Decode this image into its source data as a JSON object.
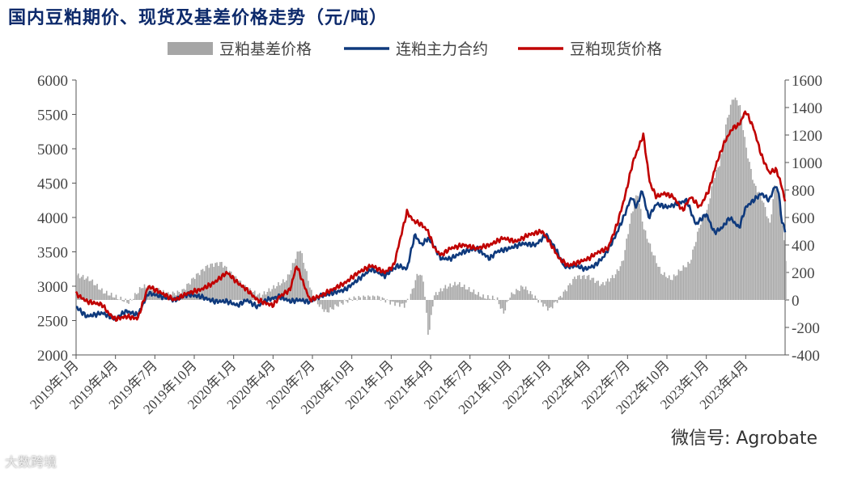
{
  "chart_data": {
    "type": "line",
    "title": "国内豆粕期价、现货及基差价格走势（元/吨）",
    "legend": [
      {
        "name": "豆粕基差价格",
        "kind": "bar",
        "color": "#a6a6a6"
      },
      {
        "name": "连粕主力合约",
        "kind": "line",
        "color": "#0f3a7d"
      },
      {
        "name": "豆粕现货价格",
        "kind": "line",
        "color": "#c00000"
      }
    ],
    "legend_position": "top-center",
    "x_labels": [
      "2019年1月",
      "2019年4月",
      "2019年7月",
      "2019年10月",
      "2020年1月",
      "2020年4月",
      "2020年7月",
      "2020年10月",
      "2021年1月",
      "2021年4月",
      "2021年7月",
      "2021年10月",
      "2022年1月",
      "2022年4月",
      "2022年7月",
      "2022年10月",
      "2023年1月",
      "2023年4月"
    ],
    "x_range_months": [
      0,
      54
    ],
    "y_left": {
      "min": 2000,
      "max": 6000,
      "step": 500,
      "ticks": [
        "2000",
        "2500",
        "3000",
        "3500",
        "4000",
        "4500",
        "5000",
        "5500",
        "6000"
      ]
    },
    "y_right": {
      "min": -400,
      "max": 1600,
      "step": 200,
      "ticks": [
        "-400",
        "-200",
        "0",
        "200",
        "400",
        "600",
        "800",
        "1000",
        "1200",
        "1400",
        "1600"
      ]
    },
    "series": [
      {
        "name": "连粕主力合约",
        "axis": "left",
        "color": "#0f3a7d",
        "points": [
          [
            0,
            2700
          ],
          [
            0.8,
            2560
          ],
          [
            2,
            2610
          ],
          [
            3,
            2520
          ],
          [
            3.8,
            2640
          ],
          [
            4.7,
            2580
          ],
          [
            5.5,
            2900
          ],
          [
            6.5,
            2850
          ],
          [
            7.5,
            2800
          ],
          [
            8.5,
            2880
          ],
          [
            9.5,
            2850
          ],
          [
            10.5,
            2780
          ],
          [
            11.5,
            2780
          ],
          [
            12.3,
            2720
          ],
          [
            13,
            2800
          ],
          [
            13.8,
            2700
          ],
          [
            14.5,
            2800
          ],
          [
            15.5,
            2850
          ],
          [
            16.3,
            2780
          ],
          [
            17,
            2800
          ],
          [
            17.8,
            2770
          ],
          [
            18.5,
            2850
          ],
          [
            19.5,
            2900
          ],
          [
            20.5,
            2950
          ],
          [
            21.5,
            3100
          ],
          [
            22.5,
            3250
          ],
          [
            23.5,
            3150
          ],
          [
            24.5,
            3300
          ],
          [
            25.2,
            3250
          ],
          [
            25.8,
            3750
          ],
          [
            26.3,
            3600
          ],
          [
            26.8,
            3700
          ],
          [
            27.2,
            3600
          ],
          [
            27.8,
            3400
          ],
          [
            28.5,
            3400
          ],
          [
            29.5,
            3500
          ],
          [
            30.5,
            3550
          ],
          [
            31.5,
            3400
          ],
          [
            32,
            3500
          ],
          [
            33,
            3550
          ],
          [
            34,
            3620
          ],
          [
            35,
            3600
          ],
          [
            35.8,
            3750
          ],
          [
            36.5,
            3550
          ],
          [
            37.2,
            3280
          ],
          [
            38,
            3300
          ],
          [
            38.8,
            3250
          ],
          [
            39.5,
            3300
          ],
          [
            40.2,
            3430
          ],
          [
            41,
            3700
          ],
          [
            41.7,
            4000
          ],
          [
            42.3,
            4300
          ],
          [
            42.7,
            4150
          ],
          [
            43.1,
            4400
          ],
          [
            43.6,
            4000
          ],
          [
            44.2,
            4200
          ],
          [
            45,
            4150
          ],
          [
            45.8,
            4200
          ],
          [
            46.5,
            4250
          ],
          [
            47.2,
            3900
          ],
          [
            48,
            4050
          ],
          [
            48.6,
            3780
          ],
          [
            49.2,
            3850
          ],
          [
            49.8,
            4000
          ],
          [
            50.5,
            3850
          ],
          [
            51,
            4150
          ],
          [
            51.6,
            4250
          ],
          [
            52.2,
            4350
          ],
          [
            52.8,
            4250
          ],
          [
            53.2,
            4450
          ],
          [
            53.5,
            4400
          ],
          [
            53.7,
            4000
          ],
          [
            54,
            3800
          ]
        ]
      },
      {
        "name": "豆粕现货价格",
        "axis": "left",
        "color": "#c00000",
        "points": [
          [
            0,
            2890
          ],
          [
            0.8,
            2780
          ],
          [
            2,
            2730
          ],
          [
            2.5,
            2600
          ],
          [
            3,
            2520
          ],
          [
            3.8,
            2560
          ],
          [
            4.7,
            2530
          ],
          [
            5.5,
            3000
          ],
          [
            6.5,
            2900
          ],
          [
            7.5,
            2800
          ],
          [
            8.5,
            2900
          ],
          [
            9.5,
            2950
          ],
          [
            10.5,
            3050
          ],
          [
            11.5,
            3200
          ],
          [
            12.3,
            3050
          ],
          [
            13,
            2950
          ],
          [
            13.8,
            2800
          ],
          [
            14.5,
            2750
          ],
          [
            15,
            2720
          ],
          [
            15.5,
            2850
          ],
          [
            16.3,
            2950
          ],
          [
            16.8,
            3300
          ],
          [
            17.2,
            3100
          ],
          [
            17.8,
            2800
          ],
          [
            18.5,
            2850
          ],
          [
            19.5,
            2950
          ],
          [
            20.5,
            3050
          ],
          [
            21.5,
            3200
          ],
          [
            22.5,
            3300
          ],
          [
            23.5,
            3200
          ],
          [
            24.2,
            3300
          ],
          [
            24.7,
            3700
          ],
          [
            25.2,
            4080
          ],
          [
            25.7,
            3950
          ],
          [
            26.3,
            3900
          ],
          [
            26.8,
            3800
          ],
          [
            27.3,
            3550
          ],
          [
            27.8,
            3450
          ],
          [
            28.5,
            3550
          ],
          [
            29.5,
            3600
          ],
          [
            30.5,
            3550
          ],
          [
            31.5,
            3600
          ],
          [
            32.5,
            3700
          ],
          [
            33.5,
            3650
          ],
          [
            34.5,
            3750
          ],
          [
            35.5,
            3800
          ],
          [
            36.2,
            3600
          ],
          [
            36.8,
            3400
          ],
          [
            37.5,
            3300
          ],
          [
            38.3,
            3350
          ],
          [
            39,
            3400
          ],
          [
            39.8,
            3500
          ],
          [
            40.5,
            3550
          ],
          [
            41.2,
            3900
          ],
          [
            41.8,
            4300
          ],
          [
            42.4,
            4800
          ],
          [
            42.8,
            5000
          ],
          [
            43.2,
            5200
          ],
          [
            43.7,
            4500
          ],
          [
            44.2,
            4300
          ],
          [
            44.8,
            4350
          ],
          [
            45.5,
            4300
          ],
          [
            46.2,
            4100
          ],
          [
            46.8,
            4300
          ],
          [
            47.5,
            4150
          ],
          [
            48.2,
            4400
          ],
          [
            48.8,
            4800
          ],
          [
            49.4,
            5100
          ],
          [
            50,
            5300
          ],
          [
            50.5,
            5350
          ],
          [
            51,
            5550
          ],
          [
            51.6,
            5300
          ],
          [
            52.2,
            4900
          ],
          [
            52.8,
            4650
          ],
          [
            53.3,
            4700
          ],
          [
            53.6,
            4550
          ],
          [
            54,
            4250
          ]
        ]
      }
    ],
    "basis_bars": {
      "axis": "right",
      "color": "#a6a6a6",
      "points": [
        [
          0,
          180
        ],
        [
          1,
          150
        ],
        [
          2,
          60
        ],
        [
          3,
          20
        ],
        [
          4,
          -20
        ],
        [
          5,
          100
        ],
        [
          6,
          80
        ],
        [
          7,
          40
        ],
        [
          8,
          60
        ],
        [
          9,
          170
        ],
        [
          10,
          250
        ],
        [
          11,
          270
        ],
        [
          12,
          170
        ],
        [
          13,
          80
        ],
        [
          14,
          30
        ],
        [
          15,
          90
        ],
        [
          16,
          150
        ],
        [
          17,
          380
        ],
        [
          17.5,
          200
        ],
        [
          18,
          10
        ],
        [
          19,
          -90
        ],
        [
          20,
          -30
        ],
        [
          21,
          10
        ],
        [
          22,
          20
        ],
        [
          23,
          20
        ],
        [
          24,
          -20
        ],
        [
          25,
          -40
        ],
        [
          25.5,
          50
        ],
        [
          26,
          200
        ],
        [
          26.4,
          150
        ],
        [
          26.8,
          -280
        ],
        [
          27.2,
          30
        ],
        [
          28,
          90
        ],
        [
          29,
          120
        ],
        [
          30,
          70
        ],
        [
          31,
          20
        ],
        [
          32,
          10
        ],
        [
          32.5,
          -100
        ],
        [
          33,
          30
        ],
        [
          34,
          100
        ],
        [
          35,
          10
        ],
        [
          36,
          -70
        ],
        [
          37,
          40
        ],
        [
          38,
          170
        ],
        [
          39,
          170
        ],
        [
          40,
          110
        ],
        [
          41,
          180
        ],
        [
          41.6,
          280
        ],
        [
          42.2,
          600
        ],
        [
          42.7,
          780
        ],
        [
          43.2,
          520
        ],
        [
          43.8,
          360
        ],
        [
          44.5,
          200
        ],
        [
          45.3,
          150
        ],
        [
          46,
          220
        ],
        [
          46.7,
          270
        ],
        [
          47.5,
          560
        ],
        [
          48,
          640
        ],
        [
          48.5,
          880
        ],
        [
          49,
          1000
        ],
        [
          49.5,
          1300
        ],
        [
          50,
          1480
        ],
        [
          50.5,
          1420
        ],
        [
          51,
          1100
        ],
        [
          51.6,
          840
        ],
        [
          52.2,
          740
        ],
        [
          52.8,
          550
        ],
        [
          53.2,
          850
        ],
        [
          53.6,
          700
        ],
        [
          54,
          300
        ]
      ]
    }
  },
  "watermarks": {
    "right": "微信号: Agrobate",
    "left": "大数跨境"
  }
}
